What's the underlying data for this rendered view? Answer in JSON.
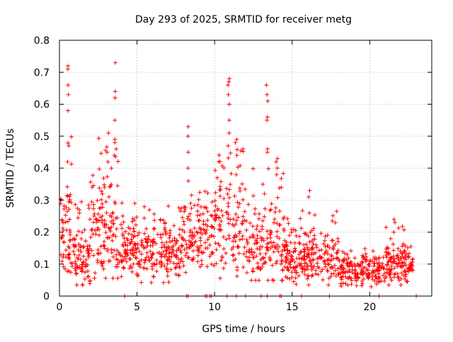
{
  "chart_data": {
    "type": "scatter",
    "title": "Day 293 of 2025, SRMTID for receiver metg",
    "xlabel": "GPS time / hours",
    "ylabel": "SRMTID / TECUs",
    "xlim": [
      0,
      24
    ],
    "ylim": [
      0,
      0.8
    ],
    "x_ticks": [
      0,
      5,
      10,
      15,
      20
    ],
    "y_ticks": [
      0,
      0.1,
      0.2,
      0.3,
      0.4,
      0.5,
      0.6,
      0.7,
      0.8
    ],
    "x_tick_labels": [
      "0",
      "5",
      "10",
      "15",
      "20"
    ],
    "y_tick_labels": [
      "0",
      "0.1",
      "0.2",
      "0.3",
      "0.4",
      "0.5",
      "0.6",
      "0.7",
      "0.8"
    ],
    "grid": true,
    "marker": "+",
    "series": [
      {
        "name": "metg",
        "color": "#ff0000",
        "approximate_profile": {
          "note": "dense per-satellite arcs approximated by time-band envelope",
          "bands": [
            {
              "t_start": 0.0,
              "t_end": 0.8,
              "low": 0.1,
              "mid": 0.2,
              "high": 0.5
            },
            {
              "t_start": 0.8,
              "t_end": 2.0,
              "low": 0.05,
              "mid": 0.12,
              "high": 0.3
            },
            {
              "t_start": 2.0,
              "t_end": 3.8,
              "low": 0.08,
              "mid": 0.22,
              "high": 0.5
            },
            {
              "t_start": 3.8,
              "t_end": 5.0,
              "low": 0.07,
              "mid": 0.15,
              "high": 0.3
            },
            {
              "t_start": 5.0,
              "t_end": 8.0,
              "low": 0.06,
              "mid": 0.14,
              "high": 0.3
            },
            {
              "t_start": 8.0,
              "t_end": 10.0,
              "low": 0.08,
              "mid": 0.2,
              "high": 0.36
            },
            {
              "t_start": 10.0,
              "t_end": 12.0,
              "low": 0.08,
              "mid": 0.22,
              "high": 0.49
            },
            {
              "t_start": 12.0,
              "t_end": 14.5,
              "low": 0.07,
              "mid": 0.16,
              "high": 0.43
            },
            {
              "t_start": 14.5,
              "t_end": 18.0,
              "low": 0.05,
              "mid": 0.12,
              "high": 0.27
            },
            {
              "t_start": 18.0,
              "t_end": 21.0,
              "low": 0.03,
              "mid": 0.08,
              "high": 0.15
            },
            {
              "t_start": 21.0,
              "t_end": 22.8,
              "low": 0.05,
              "mid": 0.1,
              "high": 0.22
            }
          ],
          "spikes": [
            {
              "t": 0.55,
              "values": [
                0.72,
                0.71,
                0.66,
                0.63,
                0.58,
                0.47,
                0.42
              ]
            },
            {
              "t": 3.6,
              "values": [
                0.73,
                0.64,
                0.62,
                0.55,
                0.49,
                0.48,
                0.46,
                0.44
              ]
            },
            {
              "t": 3.1,
              "values": [
                0.51,
                0.45,
                0.42
              ]
            },
            {
              "t": 8.3,
              "values": [
                0.53,
                0.5,
                0.45,
                0.4,
                0.36
              ]
            },
            {
              "t": 10.9,
              "values": [
                0.68,
                0.67,
                0.66,
                0.63,
                0.6,
                0.55,
                0.51,
                0.47
              ]
            },
            {
              "t": 11.4,
              "values": [
                0.49,
                0.48,
                0.44,
                0.38
              ]
            },
            {
              "t": 13.4,
              "values": [
                0.66,
                0.63,
                0.61,
                0.56,
                0.55,
                0.46,
                0.45
              ]
            },
            {
              "t": 14.0,
              "values": [
                0.43,
                0.42,
                0.4,
                0.38
              ]
            },
            {
              "t": 16.1,
              "values": [
                0.33,
                0.31,
                0.26
              ]
            },
            {
              "t": 21.6,
              "values": [
                0.24,
                0.23,
                0.2
              ]
            }
          ],
          "zero_values_at_t": [
            4.2,
            8.2,
            8.3,
            9.4,
            9.5,
            9.7,
            9.8,
            10.8,
            11.4,
            12.0,
            13.0,
            13.4,
            14.2,
            14.3,
            15.6,
            17.4,
            20.6,
            23.0
          ]
        }
      }
    ]
  }
}
